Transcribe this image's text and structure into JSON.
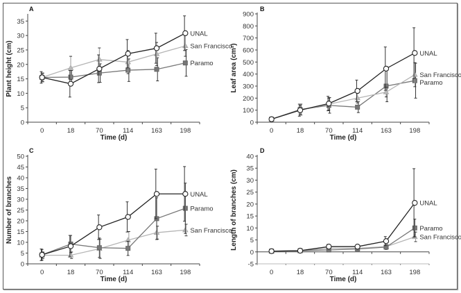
{
  "chart_data": [
    {
      "type": "line",
      "panel": "A",
      "title": "",
      "xlabel": "Time (d)",
      "ylabel": "Plant height (cm)",
      "categories": [
        "0",
        "18",
        "70",
        "114",
        "163",
        "198"
      ],
      "ylim": [
        0,
        37
      ],
      "yticks": [
        0,
        5,
        10,
        15,
        20,
        25,
        30,
        35
      ],
      "grid": false,
      "series": [
        {
          "name": "UNAL",
          "marker": "circle-open",
          "color": "#222222",
          "values": [
            15.5,
            13.3,
            18.5,
            23.7,
            25.6,
            30.8
          ],
          "err": [
            2.0,
            4.6,
            4.8,
            4.9,
            5.2,
            6.0
          ]
        },
        {
          "name": "San Francisco",
          "marker": "triangle",
          "color": "#b5b5b5",
          "values": [
            15.5,
            18.8,
            21.7,
            20.8,
            23.6,
            26.4
          ],
          "err": [
            1.5,
            4.0,
            4.0,
            4.0,
            4.0,
            3.6
          ]
        },
        {
          "name": "Paramo",
          "marker": "square",
          "color": "#777777",
          "values": [
            15.5,
            15.6,
            17.0,
            18.0,
            18.3,
            20.5
          ],
          "err": [
            1.5,
            2.3,
            3.2,
            3.9,
            4.0,
            4.6
          ]
        }
      ],
      "legend": [
        "UNAL",
        "San Francisco",
        "Paramo"
      ],
      "legend_position": "right-of-lines"
    },
    {
      "type": "line",
      "panel": "B",
      "title": "",
      "xlabel": "Time (d)",
      "ylabel": "Leaf area (cm²)",
      "categories": [
        "0",
        "18",
        "70",
        "114",
        "163",
        "198"
      ],
      "ylim": [
        0,
        900
      ],
      "yticks": [
        0,
        100,
        200,
        300,
        400,
        500,
        600,
        700,
        800,
        900
      ],
      "grid": false,
      "series": [
        {
          "name": "UNAL",
          "marker": "circle-open",
          "color": "#222222",
          "values": [
            25,
            100,
            155,
            260,
            445,
            575
          ],
          "err": [
            5,
            50,
            60,
            90,
            180,
            210
          ]
        },
        {
          "name": "San Francisco",
          "marker": "triangle",
          "color": "#b5b5b5",
          "values": [
            25,
            100,
            150,
            200,
            250,
            395
          ],
          "err": [
            5,
            40,
            50,
            40,
            40,
            100
          ]
        },
        {
          "name": "Paramo",
          "marker": "square",
          "color": "#777777",
          "values": [
            25,
            105,
            140,
            125,
            300,
            345
          ],
          "err": [
            5,
            45,
            65,
            45,
            130,
            145
          ]
        }
      ],
      "legend": [
        "UNAL",
        "San Francisco",
        "Paramo"
      ],
      "legend_position": "right-of-lines"
    },
    {
      "type": "line",
      "panel": "C",
      "title": "",
      "xlabel": "Time (d)",
      "ylabel": "Number of branches",
      "categories": [
        "0",
        "18",
        "70",
        "114",
        "163",
        "198"
      ],
      "ylim": [
        0,
        50
      ],
      "yticks": [
        0,
        5,
        10,
        15,
        20,
        25,
        30,
        35,
        40,
        45,
        50
      ],
      "grid": false,
      "series": [
        {
          "name": "UNAL",
          "marker": "circle-open",
          "color": "#222222",
          "values": [
            4.2,
            8.2,
            17.0,
            21.8,
            32.5,
            32.5
          ],
          "err": [
            2.7,
            5.0,
            5.7,
            7.0,
            11.5,
            12.7
          ]
        },
        {
          "name": "Paramo",
          "marker": "square",
          "color": "#777777",
          "values": [
            4.2,
            9.2,
            7.5,
            7.2,
            21.0,
            25.8
          ],
          "err": [
            2.5,
            4.0,
            4.5,
            3.3,
            9.7,
            11.7
          ]
        },
        {
          "name": "San Francisco",
          "marker": "triangle",
          "color": "#b5b5b5",
          "values": [
            4.0,
            4.0,
            7.0,
            11.0,
            14.5,
            15.7
          ],
          "err": [
            1.5,
            1.5,
            4.5,
            4.0,
            3.0,
            2.7
          ]
        }
      ],
      "legend": [
        "UNAL",
        "Paramo",
        "San Francisco"
      ],
      "legend_position": "right-of-lines"
    },
    {
      "type": "line",
      "panel": "D",
      "title": "",
      "xlabel": "Time (d)",
      "ylabel": "Length of branches (cm)",
      "categories": [
        "0",
        "18",
        "70",
        "114",
        "163",
        "198"
      ],
      "ylim": [
        -5,
        40
      ],
      "yticks": [
        -5,
        0,
        5,
        10,
        15,
        20,
        25,
        30,
        35,
        40
      ],
      "grid": false,
      "series": [
        {
          "name": "UNAL",
          "marker": "circle-open",
          "color": "#222222",
          "values": [
            0.3,
            0.5,
            2.2,
            2.2,
            4.5,
            20.5
          ],
          "err": [
            0.4,
            0.3,
            0.9,
            0.6,
            1.9,
            14.3
          ]
        },
        {
          "name": "Paramo",
          "marker": "square",
          "color": "#777777",
          "values": [
            0.3,
            0.5,
            0.8,
            1.2,
            2.0,
            10.0
          ],
          "err": [
            0.3,
            0.3,
            0.5,
            0.6,
            1.0,
            3.7
          ]
        },
        {
          "name": "San Francisco",
          "marker": "triangle",
          "color": "#b5b5b5",
          "values": [
            0.2,
            0.4,
            1.5,
            1.5,
            2.2,
            6.3
          ],
          "err": [
            0.2,
            0.3,
            0.6,
            0.6,
            0.8,
            2.0
          ]
        }
      ],
      "legend": [
        "UNAL",
        "Paramo",
        "San Francisco"
      ],
      "legend_position": "right-of-lines"
    }
  ]
}
